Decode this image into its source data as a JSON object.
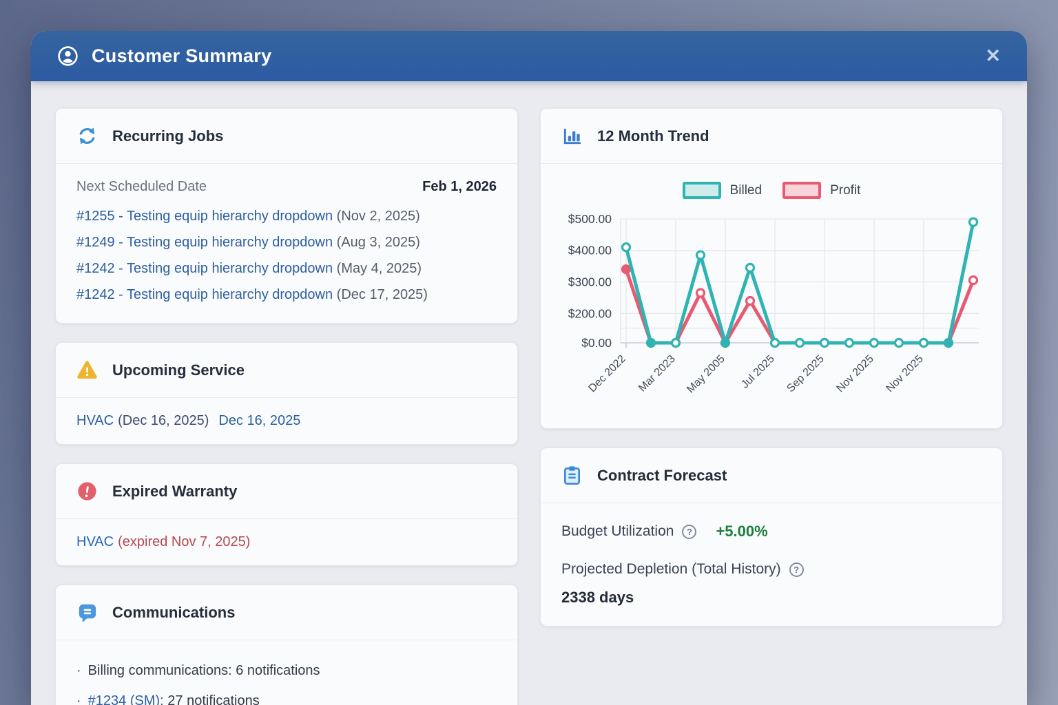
{
  "header": {
    "title": "Customer Summary",
    "close_label": "✕",
    "icon": "user-circle-icon"
  },
  "left_column": {
    "recurring_jobs": {
      "icon": "refresh-icon",
      "title": "Recurring Jobs",
      "next_label": "Next Scheduled Date",
      "next_date": "Feb 1, 2026",
      "jobs": [
        {
          "link": "#1255 - Testing equip hierarchy dropdown",
          "date": "(Nov 2, 2025)"
        },
        {
          "link": "#1249 - Testing equip hierarchy dropdown",
          "date": "(Aug 3, 2025)"
        },
        {
          "link": "#1242 - Testing equip hierarchy dropdown",
          "date": "(May 4, 2025)"
        },
        {
          "link": "#1242 - Testing equip hierarchy dropdown",
          "date": "(Dec 17, 2025)"
        }
      ]
    },
    "upcoming_service": {
      "icon": "warning-triangle-icon",
      "title": "Upcoming Service",
      "equipment_link": "HVAC",
      "detail": "(Dec 16, 2025)",
      "date": "Dec 16, 2025"
    },
    "expired_warranty": {
      "icon": "error-circle-icon",
      "title": "Expired Warranty",
      "equipment_link": "HVAC",
      "detail": "(expired Nov 7, 2025)"
    },
    "communications": {
      "icon": "chat-bubble-icon",
      "title": "Communications",
      "items": [
        {
          "link": "",
          "label": "Billing communications:",
          "count": "6 notifications"
        },
        {
          "link": "#1234 (SM):",
          "label": "",
          "count": "27 notifications"
        }
      ]
    }
  },
  "right_column": {
    "trend": {
      "icon": "bar-chart-icon",
      "title": "12 Month Trend"
    },
    "forecast": {
      "icon": "clipboard-icon",
      "title": "Contract Forecast",
      "budget_label": "Budget Utilization",
      "budget_value": "+5.00%",
      "budget_value_color": "#1b7e3c",
      "depletion_label": "Projected Depletion (Total History)",
      "depletion_value": "2338 days"
    }
  },
  "chart_data": {
    "type": "line",
    "title": "12 Month Trend",
    "x_labels": [
      "Dec 2022",
      "Mar 2023",
      "May 2005",
      "Jul 2025",
      "Sep 2025",
      "Nov 2025",
      "Nov 2025"
    ],
    "x_label_indices": [
      0,
      2,
      4,
      6,
      8,
      10,
      12
    ],
    "series": [
      {
        "name": "Billed",
        "color": "#2fb3b3",
        "fill_color": "#cdecea",
        "values": [
          410,
          0,
          0,
          385,
          0,
          345,
          0,
          0,
          0,
          0,
          0,
          0,
          0,
          0,
          490
        ],
        "filled_marker_indices": [
          1,
          4,
          13
        ]
      },
      {
        "name": "Profit",
        "color": "#e85a72",
        "fill_color": "#f9d3da",
        "values": [
          340,
          0,
          0,
          265,
          0,
          240,
          0,
          0,
          0,
          0,
          0,
          0,
          0,
          0,
          305
        ],
        "filled_marker_indices": [
          0
        ]
      }
    ],
    "y_ticks": [
      {
        "value": 500,
        "label": "$500.00"
      },
      {
        "value": 400,
        "label": "$400.00"
      },
      {
        "value": 300,
        "label": "$300.00"
      },
      {
        "value": 200,
        "label": "$200.00"
      },
      {
        "value": 0,
        "label": "$0.00"
      }
    ],
    "y_gridlines": [
      500,
      400,
      300,
      200,
      100,
      0
    ],
    "ylim": [
      0,
      500
    ],
    "grid": true,
    "legend_position": "top",
    "y_scale_anchors": [
      [
        0,
        1.0
      ],
      [
        100,
        0.881
      ],
      [
        200,
        0.763
      ],
      [
        300,
        0.508
      ],
      [
        400,
        0.254
      ],
      [
        500,
        0.0
      ]
    ]
  }
}
